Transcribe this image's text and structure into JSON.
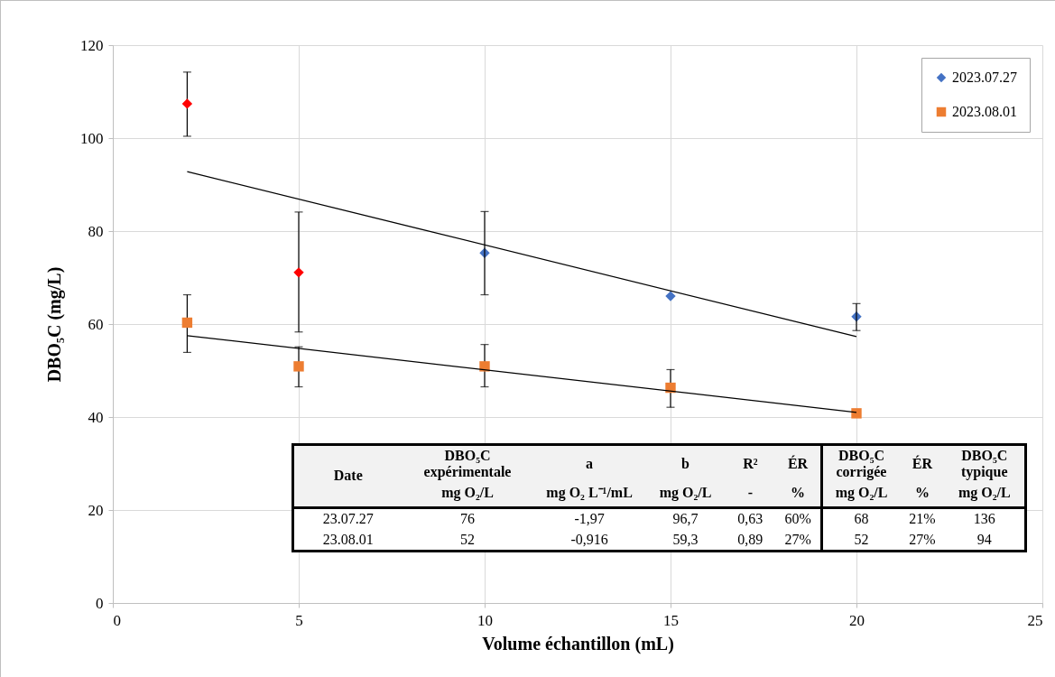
{
  "chart_data": {
    "type": "scatter",
    "xlabel": "Volume échantillon (mL)",
    "ylabel": "DBO₅C (mg/L)",
    "xlim": [
      0,
      25
    ],
    "xticks": [
      0,
      5,
      10,
      15,
      20,
      25
    ],
    "ylim": [
      0,
      120
    ],
    "yticks": [
      0,
      20,
      40,
      60,
      80,
      100,
      120
    ],
    "grid": true,
    "legend": "top right",
    "series": [
      {
        "name": "2023.07.27",
        "color": "#4472c4",
        "marker": "diamond",
        "x": [
          10,
          15,
          20
        ],
        "values": [
          75.3,
          66.0,
          61.6
        ],
        "errors": [
          [
            66.3,
            84.2
          ],
          null,
          [
            58.6,
            64.4
          ]
        ]
      },
      {
        "name": "2023.08.01",
        "color": "#ed7d31",
        "marker": "square",
        "x": [
          2,
          5,
          10,
          15,
          20
        ],
        "values": [
          60.3,
          50.9,
          50.9,
          46.3,
          40.8
        ],
        "errors": [
          [
            53.9,
            66.3
          ],
          [
            46.5,
            55.1
          ],
          [
            46.5,
            55.6
          ],
          [
            42.1,
            50.2
          ],
          null
        ]
      },
      {
        "color": "#ff0000",
        "marker": "diamond",
        "x": [
          2,
          5
        ],
        "values": [
          107.4,
          71.1
        ],
        "errors": [
          [
            100.4,
            114.2
          ],
          [
            58.3,
            84.1
          ]
        ]
      },
      {
        "type": "line",
        "color": "#000000",
        "x": [
          2,
          20
        ],
        "values": [
          92.8,
          57.3
        ]
      },
      {
        "type": "line",
        "color": "#000000",
        "x": [
          2,
          20
        ],
        "values": [
          57.5,
          41.0
        ]
      }
    ],
    "annotations": [
      "Date",
      "DBO₅C expérimentale",
      "a",
      "b",
      "R²",
      "ÉR",
      "DBO₅C corrigée",
      "ÉR",
      "DBO₅C typique",
      "mg O₂/L",
      "mg O₂ L⁻¹/mL",
      "mg O₂/L",
      "-",
      "%",
      "mg O₂/L",
      "%",
      "mg O₂/L",
      "23.07.27",
      "76",
      "-1,97",
      "96,7",
      "0,63",
      "60%",
      "68",
      "21%",
      "136",
      "23.08.01",
      "52",
      "-0,916",
      "59,3",
      "0,89",
      "27%",
      "52",
      "27%",
      "94"
    ]
  }
}
